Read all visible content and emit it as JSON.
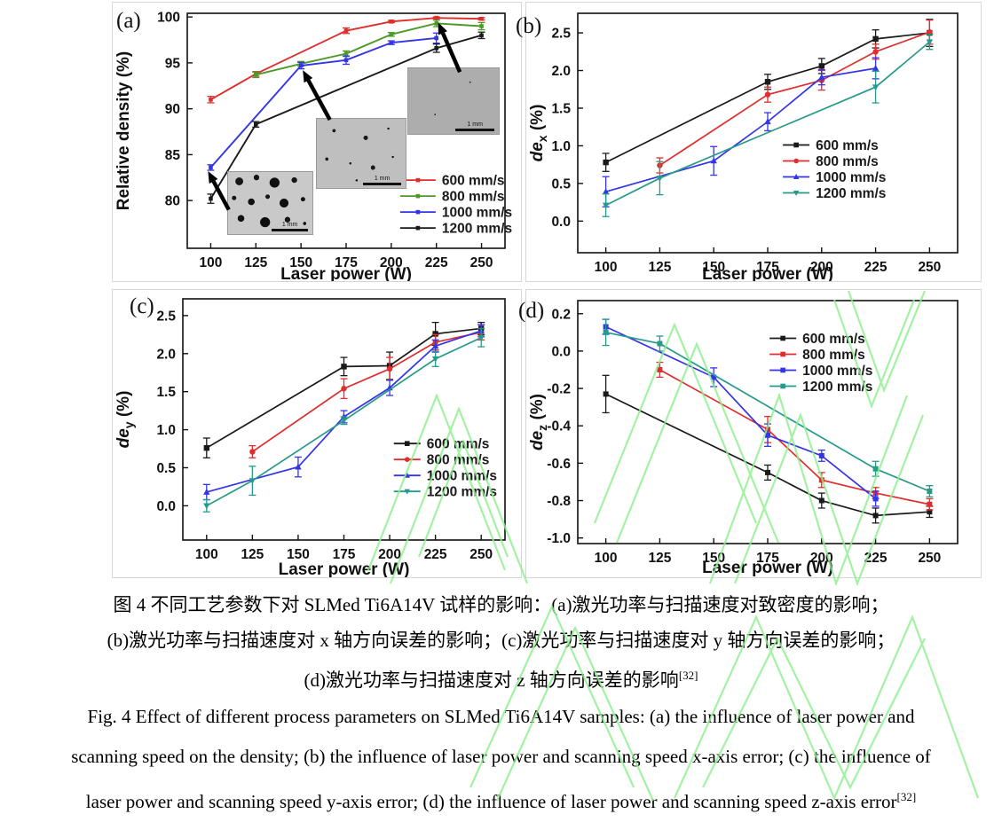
{
  "figure_number": "图 4",
  "insets": {
    "scale_label": "1 mm",
    "items": [
      {
        "name": "micrograph-100W",
        "appearance": "many large pores"
      },
      {
        "name": "micrograph-150W",
        "appearance": "few small pores"
      },
      {
        "name": "micrograph-225W",
        "appearance": "dense, almost no pores"
      }
    ]
  },
  "captions": {
    "chinese": {
      "line1": "图 4  不同工艺参数下对 SLMed Ti6A14V 试样的影响：(a)激光功率与扫描速度对致密度的影响；",
      "line2": "(b)激光功率与扫描速度对 x 轴方向误差的影响；(c)激光功率与扫描速度对 y 轴方向误差的影响；",
      "line3": "(d)激光功率与扫描速度对 z 轴方向误差的影响",
      "ref": "[32]"
    },
    "english": {
      "line1": "Fig. 4 Effect of different process parameters on SLMed Ti6A14V samples: (a) the influence of laser power and",
      "line2": "scanning speed on the density; (b) the influence of laser power and scanning speed x-axis error; (c) the influence of",
      "line3": "laser power and scanning speed y-axis error; (d) the influence of laser power and scanning speed z-axis error",
      "ref": "[32]"
    }
  },
  "chart_data": [
    {
      "type": "line",
      "tag": "(a)",
      "xlabel": "Laser power (W)",
      "ylabel": {
        "text": "Relative density (%)"
      },
      "xlim": [
        87,
        263
      ],
      "ylim": [
        74.8,
        100.4
      ],
      "xticks": [
        100,
        125,
        150,
        175,
        200,
        225,
        250
      ],
      "yticks": [
        80,
        85,
        90,
        95,
        100
      ],
      "ydec": 0,
      "grid": false,
      "legend": {
        "pos": [
          0.67,
          0.71
        ]
      },
      "series": [
        {
          "name": "600 mm/s",
          "color": "#e02d2d",
          "marker": "square",
          "points": [
            [
              100,
              91.0,
              0.35
            ],
            [
              125,
              93.8,
              0.25
            ],
            [
              175,
              98.5,
              0.3
            ],
            [
              200,
              99.5,
              0.12
            ],
            [
              225,
              99.9,
              0.1
            ],
            [
              250,
              99.8,
              0.12
            ]
          ]
        },
        {
          "name": "800 mm/s",
          "color": "#4e9a28",
          "marker": "square",
          "points": [
            [
              125,
              93.7,
              0.3
            ],
            [
              150,
              94.9,
              0.25
            ],
            [
              175,
              96.0,
              0.3
            ],
            [
              200,
              98.1,
              0.2
            ],
            [
              225,
              99.3,
              0.35
            ],
            [
              250,
              99.0,
              0.4
            ]
          ]
        },
        {
          "name": "1000 mm/s",
          "color": "#3434e8",
          "marker": "square",
          "points": [
            [
              100,
              83.6,
              0.3
            ],
            [
              150,
              94.7,
              0.35
            ],
            [
              175,
              95.3,
              0.45
            ],
            [
              200,
              97.2,
              0.2
            ],
            [
              225,
              97.7,
              0.55
            ]
          ]
        },
        {
          "name": "1200 mm/s",
          "color": "#1a1a1a",
          "marker": "square",
          "points": [
            [
              100,
              80.2,
              0.5
            ],
            [
              125,
              88.3,
              0.3
            ],
            [
              225,
              96.6,
              0.45
            ],
            [
              250,
              98.0,
              0.35
            ]
          ]
        }
      ],
      "arrows": [
        {
          "from": [
            110.0,
            79.0
          ],
          "to": [
            98.5,
            83.2
          ]
        },
        {
          "from": [
            166.0,
            88.8
          ],
          "to": [
            151.0,
            94.2
          ]
        },
        {
          "from": [
            238.0,
            94.0
          ],
          "to": [
            226.0,
            99.4
          ]
        }
      ]
    },
    {
      "type": "line",
      "tag": "(b)",
      "xlabel": "Laser power (W)",
      "ylabel": {
        "it": "de",
        "sub": "x",
        "rest": " (%)"
      },
      "xlim": [
        87,
        263
      ],
      "ylim": [
        -0.42,
        2.76
      ],
      "xticks": [
        100,
        125,
        150,
        175,
        200,
        225,
        250
      ],
      "yticks": [
        0.0,
        0.5,
        1.0,
        1.5,
        2.0,
        2.5
      ],
      "ydec": 1,
      "grid": false,
      "legend": {
        "pos": [
          0.54,
          0.55
        ]
      },
      "series": [
        {
          "name": "600 mm/s",
          "color": "#1a1a1a",
          "marker": "square",
          "points": [
            [
              100,
              0.78,
              0.12
            ],
            [
              175,
              1.85,
              0.1
            ],
            [
              200,
              2.06,
              0.1
            ],
            [
              225,
              2.42,
              0.12
            ],
            [
              250,
              2.5,
              0.18
            ]
          ]
        },
        {
          "name": "800 mm/s",
          "color": "#e02d2d",
          "marker": "circle",
          "points": [
            [
              125,
              0.74,
              0.1
            ],
            [
              175,
              1.68,
              0.1
            ],
            [
              200,
              1.87,
              0.13
            ],
            [
              225,
              2.25,
              0.1
            ],
            [
              250,
              2.51,
              0.16
            ]
          ]
        },
        {
          "name": "1000 mm/s",
          "color": "#3434e8",
          "marker": "triangle-up",
          "points": [
            [
              100,
              0.39,
              0.2
            ],
            [
              150,
              0.8,
              0.19
            ],
            [
              175,
              1.32,
              0.12
            ],
            [
              200,
              1.91,
              0.1
            ],
            [
              225,
              2.03,
              0.14
            ]
          ]
        },
        {
          "name": "1200 mm/s",
          "color": "#279a8c",
          "marker": "triangle-down",
          "points": [
            [
              100,
              0.21,
              0.15
            ],
            [
              125,
              0.57,
              0.22
            ],
            [
              225,
              1.78,
              0.21
            ],
            [
              250,
              2.38,
              0.1
            ]
          ]
        }
      ]
    },
    {
      "type": "line",
      "tag": "(c)",
      "xlabel": "Laser power (W)",
      "ylabel": {
        "it": "de",
        "sub": "y",
        "rest": " (%)"
      },
      "xlim": [
        87,
        263
      ],
      "ylim": [
        -0.45,
        2.72
      ],
      "xticks": [
        100,
        125,
        150,
        175,
        200,
        225,
        250
      ],
      "yticks": [
        0.0,
        0.5,
        1.0,
        1.5,
        2.0,
        2.5
      ],
      "ydec": 1,
      "grid": false,
      "legend": {
        "pos": [
          0.655,
          0.6
        ]
      },
      "series": [
        {
          "name": "600 mm/s",
          "color": "#1a1a1a",
          "marker": "square",
          "points": [
            [
              100,
              0.76,
              0.13
            ],
            [
              175,
              1.83,
              0.12
            ],
            [
              200,
              1.84,
              0.18
            ],
            [
              225,
              2.26,
              0.15
            ],
            [
              250,
              2.33,
              0.08
            ]
          ]
        },
        {
          "name": "800 mm/s",
          "color": "#e02d2d",
          "marker": "circle",
          "points": [
            [
              125,
              0.71,
              0.08
            ],
            [
              175,
              1.54,
              0.13
            ],
            [
              200,
              1.8,
              0.15
            ],
            [
              225,
              2.15,
              0.1
            ],
            [
              250,
              2.28,
              0.1
            ]
          ]
        },
        {
          "name": "1000 mm/s",
          "color": "#3434e8",
          "marker": "triangle-up",
          "points": [
            [
              100,
              0.18,
              0.1
            ],
            [
              150,
              0.51,
              0.13
            ],
            [
              175,
              1.17,
              0.08
            ],
            [
              200,
              1.55,
              0.1
            ],
            [
              225,
              2.1,
              0.08
            ],
            [
              250,
              2.3,
              0.08
            ]
          ]
        },
        {
          "name": "1200 mm/s",
          "color": "#279a8c",
          "marker": "triangle-down",
          "points": [
            [
              100,
              0.0,
              0.08
            ],
            [
              125,
              0.33,
              0.19
            ],
            [
              175,
              1.12,
              0.05
            ],
            [
              225,
              1.93,
              0.1
            ],
            [
              250,
              2.21,
              0.12
            ]
          ]
        }
      ]
    },
    {
      "type": "line",
      "tag": "(d)",
      "xlabel": "Laser power (W)",
      "ylabel": {
        "it": "de",
        "sub": "z",
        "rest": " (%)"
      },
      "xlim": [
        87,
        263
      ],
      "ylim": [
        -1.03,
        0.27
      ],
      "xticks": [
        100,
        125,
        150,
        175,
        200,
        225,
        250
      ],
      "yticks": [
        0.2,
        0.0,
        -0.2,
        -0.4,
        -0.6,
        -0.8,
        -1.0
      ],
      "ydec": 1,
      "grid": false,
      "legend": {
        "pos": [
          0.505,
          0.155
        ]
      },
      "series": [
        {
          "name": "600 mm/s",
          "color": "#1a1a1a",
          "marker": "square",
          "points": [
            [
              100,
              -0.23,
              0.1
            ],
            [
              175,
              -0.65,
              0.04
            ],
            [
              200,
              -0.8,
              0.04
            ],
            [
              225,
              -0.88,
              0.04
            ],
            [
              250,
              -0.86,
              0.03
            ]
          ]
        },
        {
          "name": "800 mm/s",
          "color": "#e02d2d",
          "marker": "square",
          "points": [
            [
              125,
              -0.1,
              0.04
            ],
            [
              175,
              -0.42,
              0.07
            ],
            [
              200,
              -0.69,
              0.04
            ],
            [
              225,
              -0.76,
              0.03
            ],
            [
              250,
              -0.82,
              0.03
            ]
          ]
        },
        {
          "name": "1000 mm/s",
          "color": "#3434e8",
          "marker": "square",
          "points": [
            [
              100,
              0.13,
              0.04
            ],
            [
              150,
              -0.14,
              0.05
            ],
            [
              175,
              -0.45,
              0.06
            ],
            [
              200,
              -0.56,
              0.03
            ],
            [
              225,
              -0.79,
              0.04
            ]
          ]
        },
        {
          "name": "1200 mm/s",
          "color": "#279a8c",
          "marker": "square",
          "points": [
            [
              100,
              0.1,
              0.07
            ],
            [
              125,
              0.04,
              0.04
            ],
            [
              225,
              -0.63,
              0.04
            ],
            [
              250,
              -0.75,
              0.03
            ]
          ]
        }
      ]
    }
  ]
}
